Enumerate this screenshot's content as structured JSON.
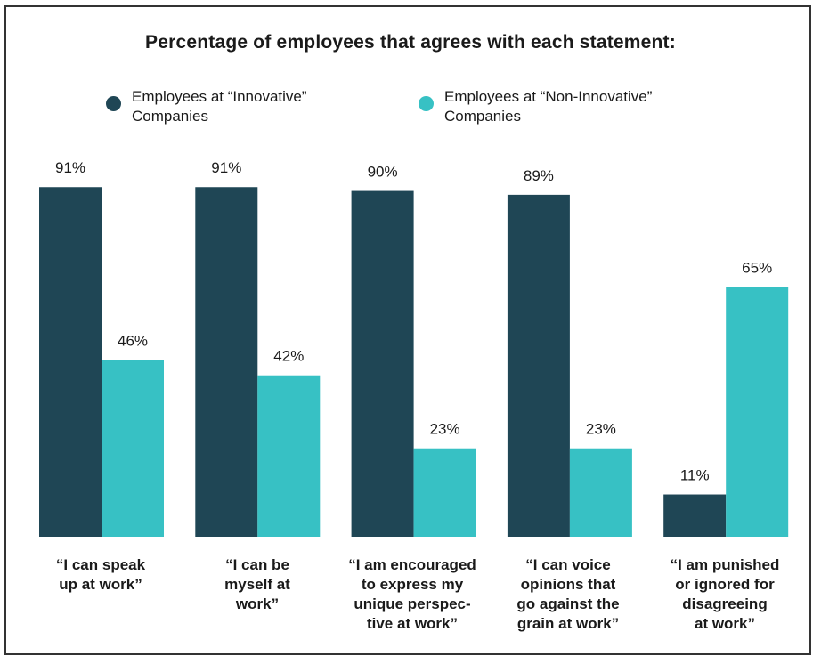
{
  "chart_data": {
    "type": "bar",
    "title": "Percentage of employees that agrees with each statement:",
    "categories": [
      "“I can speak\nup at work”",
      "“I can be\nmyself at\nwork”",
      "“I am encouraged\nto express my\nunique perspec-\ntive at work”",
      "“I can voice\nopinions that\ngo against the\ngrain at work”",
      "“I am punished\nor ignored for\ndisagreeing\nat work”"
    ],
    "series": [
      {
        "name": "Employees at “Innovative”\nCompanies",
        "color": "#1f4655",
        "values": [
          91,
          91,
          90,
          89,
          11
        ],
        "labels": [
          "91%",
          "91%",
          "90%",
          "89%",
          "11%"
        ]
      },
      {
        "name": "Employees at “Non-Innovative”\nCompanies",
        "color": "#37c1c4",
        "values": [
          46,
          42,
          23,
          23,
          65
        ],
        "labels": [
          "46%",
          "42%",
          "23%",
          "23%",
          "65%"
        ]
      }
    ],
    "ylim": [
      0,
      100
    ],
    "xlabel": "",
    "ylabel": "",
    "grid": false,
    "legend": "top"
  }
}
